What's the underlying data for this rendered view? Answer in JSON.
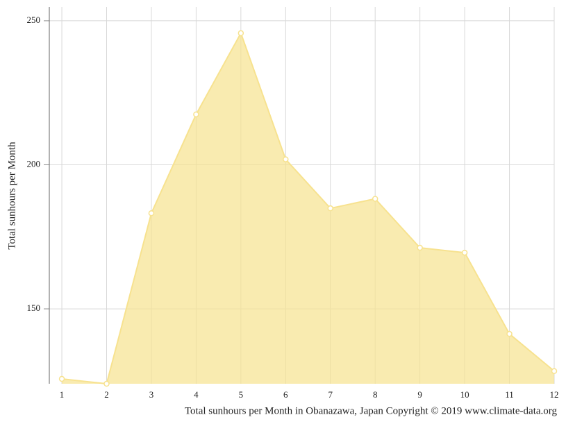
{
  "chart_data": {
    "type": "area",
    "y_label": "Total sunhours per Month",
    "caption": "Total sunhours per Month in Obanazawa, Japan Copyright © 2019 www.climate-data.org",
    "x": [
      1,
      2,
      3,
      4,
      5,
      6,
      7,
      8,
      9,
      10,
      11,
      12
    ],
    "series": [
      {
        "name": "Total sunhours per Month",
        "color": "#f7e28f",
        "values": [
          125.7,
          124.0,
          183.2,
          217.5,
          245.7,
          201.9,
          184.9,
          188.2,
          171.2,
          169.5,
          141.3,
          128.4
        ]
      }
    ],
    "xlim": [
      0.72,
      12
    ],
    "xticks": [
      1,
      2,
      3,
      4,
      5,
      6,
      7,
      8,
      9,
      10,
      11,
      12
    ],
    "ylim": [
      124,
      254.8
    ],
    "yticks": [
      150,
      200,
      250
    ],
    "grid": true
  }
}
